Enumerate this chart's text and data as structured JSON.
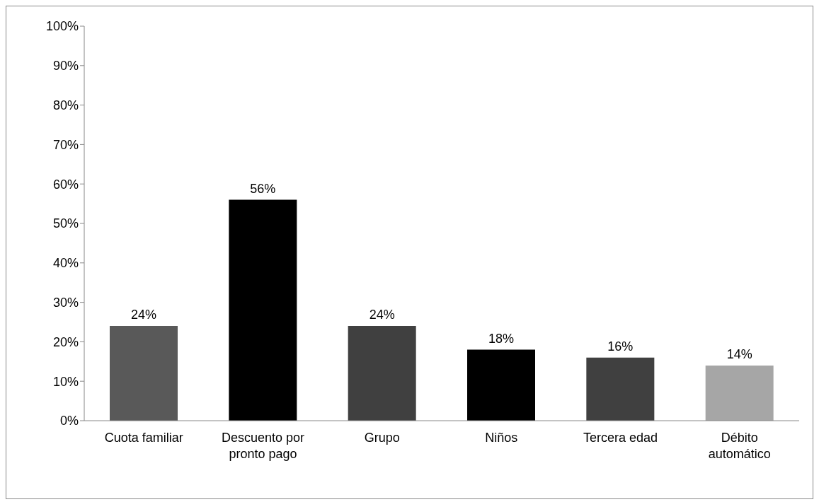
{
  "chart_data": {
    "type": "bar",
    "categories": [
      "Cuota familiar",
      "Descuento por pronto pago",
      "Grupo",
      "Niños",
      "Tercera edad",
      "Débito automático"
    ],
    "values": [
      24,
      56,
      24,
      18,
      16,
      14
    ],
    "colors": [
      "#595959",
      "#000000",
      "#404040",
      "#000000",
      "#404040",
      "#a6a6a6"
    ],
    "value_labels": [
      "24%",
      "56%",
      "24%",
      "18%",
      "16%",
      "14%"
    ],
    "ylim": [
      0,
      100
    ],
    "yticks": [
      {
        "value": 0,
        "label": "0%"
      },
      {
        "value": 10,
        "label": "10%"
      },
      {
        "value": 20,
        "label": "20%"
      },
      {
        "value": 30,
        "label": "30%"
      },
      {
        "value": 40,
        "label": "40%"
      },
      {
        "value": 50,
        "label": "50%"
      },
      {
        "value": 60,
        "label": "60%"
      },
      {
        "value": 70,
        "label": "70%"
      },
      {
        "value": 80,
        "label": "80%"
      },
      {
        "value": 90,
        "label": "90%"
      },
      {
        "value": 100,
        "label": "100%"
      }
    ],
    "grid": false,
    "legend": false
  }
}
